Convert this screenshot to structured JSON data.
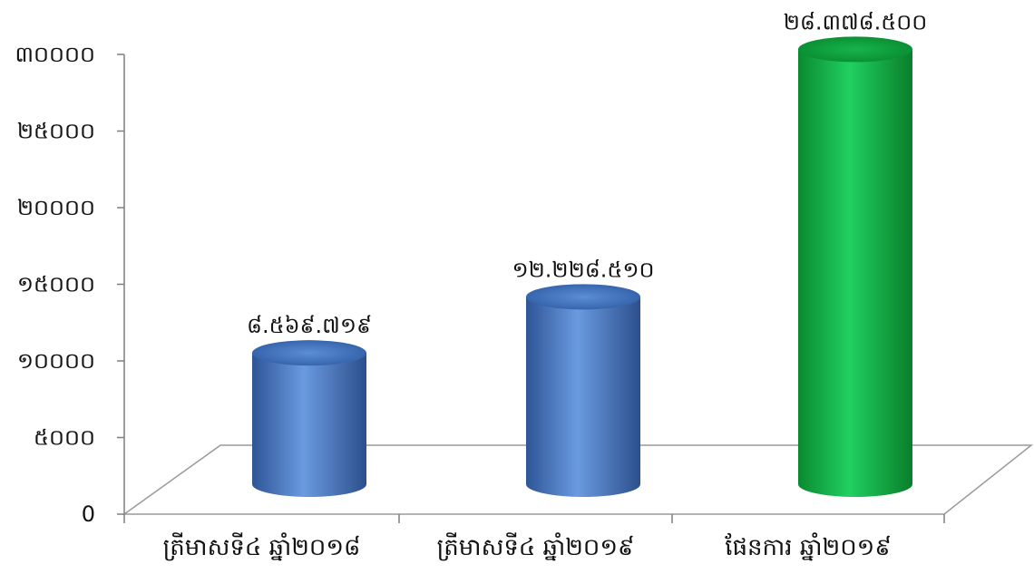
{
  "chart_data": {
    "type": "bar",
    "categories": [
      "ត្រីមាសទី៤ ឆ្នាំ២០១៨",
      "ត្រីមាសទី៤ ឆ្នាំ២០១៩",
      "ផែនការ ឆ្នាំ២០១៩"
    ],
    "values": [
      8569.719,
      12228.51,
      28378.5
    ],
    "data_labels": [
      "៨.៥៦៩.៧១៩",
      "១២.២២៨.៥១០",
      "២៨.៣៧៨.៥០០"
    ],
    "ylim": [
      0,
      30000
    ],
    "yticks": [
      0,
      5000,
      10000,
      15000,
      20000,
      25000,
      30000
    ],
    "ytick_labels": [
      "0",
      "៥០០០",
      "១០០០០",
      "១៥០០០",
      "២០០០០",
      "២៥០០០",
      "៣០០០០"
    ],
    "colors": [
      "#3f72bf",
      "#3f72bf",
      "#10b845"
    ],
    "title": "",
    "xlabel": "",
    "ylabel": "",
    "grid": false,
    "legend": "none",
    "style": "3d-cylinder"
  }
}
